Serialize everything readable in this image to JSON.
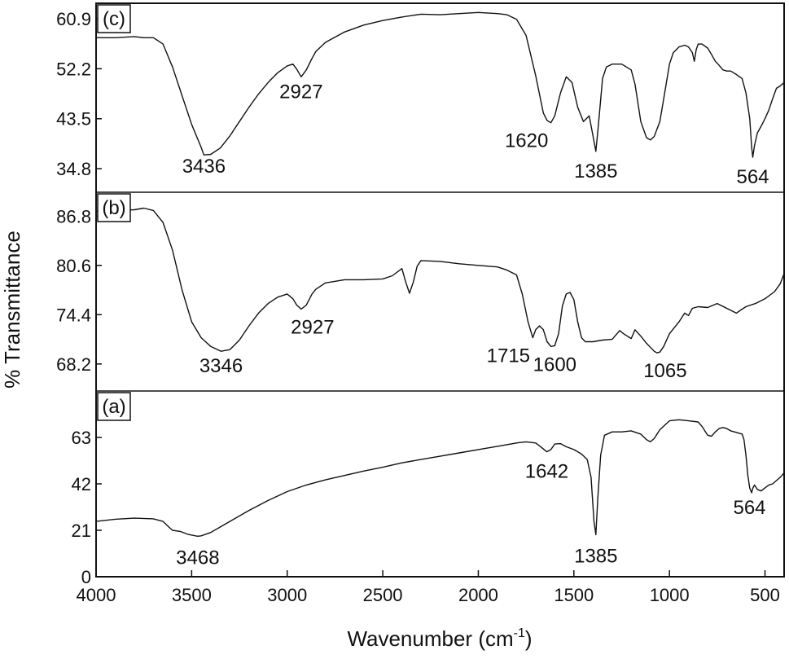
{
  "chart_data": {
    "type": "line",
    "xlabel": "Wavenumber (cm",
    "xlabel_sup": "-1",
    "xlabel_close": ")",
    "ylabel": "% Transmittance",
    "xlim": [
      4000,
      400
    ],
    "x_ticks": [
      {
        "value": 4000,
        "label": "4000"
      },
      {
        "value": 3500,
        "label": "3500"
      },
      {
        "value": 3000,
        "label": "3000"
      },
      {
        "value": 2500,
        "label": "2500"
      },
      {
        "value": 2000,
        "label": "2000"
      },
      {
        "value": 1500,
        "label": "1500"
      },
      {
        "value": 1000,
        "label": "1000"
      },
      {
        "value": 500,
        "label": "500"
      }
    ],
    "panels": [
      {
        "tag": "(c)",
        "ylim": [
          30.7,
          63.6
        ],
        "y_ticks": [
          {
            "value": 60.9,
            "label": "60.9"
          },
          {
            "value": 52.2,
            "label": "52.2"
          },
          {
            "value": 43.5,
            "label": "43.5"
          },
          {
            "value": 34.8,
            "label": "34.8"
          }
        ],
        "series": {
          "x": [
            4000,
            3900,
            3800,
            3750,
            3700,
            3650,
            3600,
            3550,
            3500,
            3450,
            3436,
            3400,
            3350,
            3300,
            3250,
            3200,
            3150,
            3100,
            3050,
            3000,
            2970,
            2950,
            2927,
            2900,
            2870,
            2850,
            2800,
            2700,
            2600,
            2500,
            2400,
            2300,
            2200,
            2100,
            2000,
            1900,
            1850,
            1800,
            1750,
            1700,
            1660,
            1640,
            1620,
            1600,
            1570,
            1540,
            1510,
            1480,
            1450,
            1420,
            1400,
            1385,
            1370,
            1350,
            1330,
            1300,
            1250,
            1200,
            1180,
            1150,
            1120,
            1100,
            1080,
            1050,
            1020,
            1000,
            980,
            950,
            920,
            900,
            880,
            870,
            860,
            850,
            830,
            800,
            780,
            760,
            740,
            720,
            700,
            680,
            650,
            620,
            600,
            580,
            570,
            564,
            555,
            540,
            520,
            500,
            480,
            460,
            440,
            420,
            400
          ],
          "y": [
            57.6,
            57.6,
            57.8,
            57.6,
            57.6,
            56.5,
            52.5,
            47.5,
            42.5,
            38.5,
            37.2,
            37.3,
            38.4,
            40.5,
            43.0,
            45.5,
            47.8,
            49.8,
            51.5,
            52.7,
            53.0,
            52.1,
            50.8,
            52.0,
            54.0,
            55.2,
            56.8,
            58.6,
            59.8,
            60.6,
            61.2,
            61.7,
            61.6,
            61.8,
            62.0,
            61.8,
            61.6,
            60.8,
            58.0,
            51.0,
            44.5,
            43.2,
            42.8,
            44.0,
            48.0,
            50.8,
            49.8,
            45.5,
            43.0,
            44.0,
            40.5,
            37.8,
            43.0,
            50.5,
            52.5,
            53.0,
            53.0,
            52.0,
            49.5,
            43.0,
            40.2,
            39.8,
            40.4,
            43.0,
            49.0,
            53.0,
            55.0,
            56.0,
            56.3,
            56.0,
            55.0,
            53.5,
            55.5,
            56.5,
            56.5,
            55.8,
            54.7,
            53.5,
            52.8,
            52.0,
            51.8,
            51.8,
            51.2,
            50.5,
            48.0,
            43.5,
            38.6,
            36.8,
            38.8,
            41.0,
            42.2,
            43.5,
            45.0,
            47.0,
            48.8,
            49.2,
            49.8
          ]
        },
        "peaks": [
          {
            "x": 3436,
            "label": "3436"
          },
          {
            "x": 2927,
            "label": "2927"
          },
          {
            "x": 1620,
            "label": "1620"
          },
          {
            "x": 1385,
            "label": "1385"
          },
          {
            "x": 564,
            "label": "564"
          }
        ]
      },
      {
        "tag": "(b)",
        "ylim": [
          64.8,
          89.8
        ],
        "y_ticks": [
          {
            "value": 86.8,
            "label": "86.8"
          },
          {
            "value": 80.6,
            "label": "80.6"
          },
          {
            "value": 74.4,
            "label": "74.4"
          },
          {
            "value": 68.2,
            "label": "68.2"
          }
        ],
        "series": {
          "x": [
            4000,
            3900,
            3800,
            3750,
            3700,
            3650,
            3600,
            3550,
            3500,
            3450,
            3400,
            3346,
            3300,
            3250,
            3200,
            3150,
            3100,
            3050,
            3000,
            2970,
            2950,
            2927,
            2900,
            2870,
            2850,
            2800,
            2700,
            2600,
            2500,
            2450,
            2400,
            2380,
            2360,
            2340,
            2320,
            2300,
            2200,
            2100,
            2000,
            1900,
            1850,
            1800,
            1770,
            1740,
            1715,
            1700,
            1680,
            1660,
            1640,
            1620,
            1600,
            1580,
            1560,
            1540,
            1520,
            1500,
            1480,
            1460,
            1440,
            1400,
            1350,
            1300,
            1260,
            1240,
            1200,
            1180,
            1150,
            1120,
            1100,
            1080,
            1065,
            1050,
            1030,
            1000,
            950,
            920,
            900,
            880,
            850,
            800,
            750,
            700,
            650,
            620,
            600,
            550,
            500,
            450,
            420,
            400
          ],
          "y": [
            87.4,
            87.5,
            87.6,
            87.8,
            87.5,
            86.0,
            82.5,
            77.5,
            73.5,
            71.5,
            70.4,
            69.8,
            70.0,
            71.2,
            73.0,
            74.6,
            75.8,
            76.6,
            77.0,
            76.4,
            75.6,
            75.1,
            75.6,
            77.0,
            77.6,
            78.4,
            78.8,
            78.8,
            78.9,
            79.3,
            80.2,
            78.5,
            77.1,
            78.5,
            80.5,
            81.2,
            81.1,
            80.8,
            80.6,
            80.4,
            80.0,
            79.4,
            77.0,
            73.5,
            71.5,
            72.5,
            73.0,
            72.5,
            71.0,
            70.4,
            70.5,
            72.0,
            75.5,
            77.0,
            77.2,
            76.3,
            73.5,
            71.5,
            71.0,
            71.0,
            71.2,
            71.3,
            72.4,
            72.0,
            71.4,
            72.5,
            71.7,
            70.8,
            70.3,
            69.8,
            69.6,
            69.7,
            70.4,
            72.0,
            73.5,
            74.6,
            74.3,
            75.2,
            75.4,
            75.3,
            75.8,
            75.2,
            74.6,
            75.1,
            75.4,
            75.8,
            76.4,
            77.3,
            78.3,
            79.6
          ]
        },
        "peaks": [
          {
            "x": 3346,
            "label": "3346"
          },
          {
            "x": 2927,
            "label": "2927"
          },
          {
            "x": 1715,
            "label": "1715"
          },
          {
            "x": 1600,
            "label": "1600"
          },
          {
            "x": 1065,
            "label": "1065"
          }
        ]
      },
      {
        "tag": "(a)",
        "ylim": [
          0,
          84
        ],
        "y_ticks": [
          {
            "value": 63,
            "label": "63"
          },
          {
            "value": 42,
            "label": "42"
          },
          {
            "value": 21,
            "label": "21"
          },
          {
            "value": 0,
            "label": "0"
          }
        ],
        "series": {
          "x": [
            4000,
            3900,
            3800,
            3700,
            3650,
            3620,
            3600,
            3560,
            3520,
            3480,
            3468,
            3450,
            3400,
            3350,
            3300,
            3200,
            3100,
            3000,
            2900,
            2800,
            2700,
            2600,
            2500,
            2400,
            2300,
            2200,
            2100,
            2000,
            1900,
            1800,
            1750,
            1700,
            1670,
            1642,
            1620,
            1600,
            1570,
            1540,
            1500,
            1460,
            1430,
            1410,
            1395,
            1385,
            1375,
            1360,
            1340,
            1300,
            1250,
            1200,
            1150,
            1120,
            1100,
            1080,
            1050,
            1000,
            950,
            900,
            850,
            830,
            800,
            780,
            760,
            740,
            720,
            700,
            680,
            660,
            640,
            620,
            610,
            600,
            590,
            580,
            570,
            564,
            555,
            540,
            520,
            500,
            480,
            460,
            440,
            420,
            400
          ],
          "y": [
            25.0,
            26.0,
            26.5,
            26.2,
            25.0,
            22.5,
            21.0,
            20.5,
            19.2,
            18.5,
            18.3,
            18.5,
            20.0,
            22.5,
            25.0,
            30.0,
            34.5,
            38.5,
            41.5,
            43.8,
            45.8,
            47.8,
            49.5,
            51.5,
            53.0,
            54.5,
            56.0,
            57.5,
            59.0,
            60.5,
            61.0,
            60.5,
            58.5,
            56.5,
            57.5,
            60.0,
            60.2,
            58.8,
            57.5,
            55.5,
            53.0,
            45.0,
            25.0,
            19.0,
            35.0,
            55.0,
            64.0,
            65.5,
            65.5,
            66.0,
            64.5,
            62.0,
            61.0,
            62.5,
            66.5,
            70.5,
            71.0,
            70.5,
            70.0,
            68.0,
            64.0,
            63.5,
            65.5,
            67.0,
            67.5,
            67.0,
            66.0,
            65.5,
            65.0,
            64.5,
            62.0,
            55.0,
            46.0,
            40.0,
            38.0,
            40.0,
            41.5,
            39.5,
            38.8,
            40.2,
            41.5,
            42.0,
            43.5,
            45.0,
            47.0
          ]
        },
        "peaks": [
          {
            "x": 3468,
            "label": "3468"
          },
          {
            "x": 1642,
            "label": "1642"
          },
          {
            "x": 1385,
            "label": "1385"
          },
          {
            "x": 564,
            "label": "564"
          }
        ]
      }
    ]
  }
}
